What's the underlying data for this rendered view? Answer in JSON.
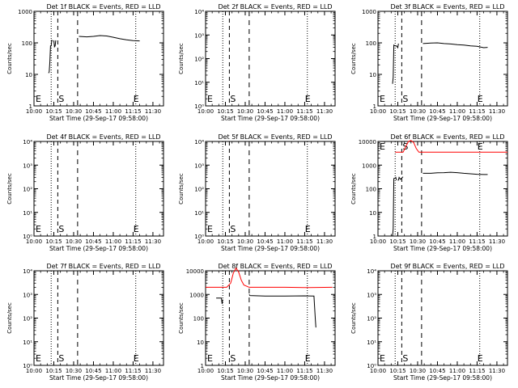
{
  "colors": {
    "events": "#000000",
    "lld": "#ff0000",
    "frame": "#000000",
    "background": "#ffffff"
  },
  "common": {
    "ylabel": "Counts/sec",
    "xlabel": "Start Time (29-Sep-17 09:58:00)",
    "x_ticks": [
      "10:00",
      "10:15",
      "10:30",
      "10:45",
      "11:00",
      "11:15",
      "11:30"
    ],
    "x_range": [
      "10:00",
      "11:38"
    ],
    "marker_times": {
      "E_start": "10:13",
      "S": "10:18",
      "dash": "10:33",
      "E_end": "11:17"
    }
  },
  "chart_data": [
    {
      "type": "line",
      "title": "Det 1f BLACK = Events, RED = LLD",
      "y_scale": "log",
      "ylim": [
        1,
        1000
      ],
      "y_ticks": [
        "1",
        "10",
        "100",
        "1000"
      ],
      "markers": [
        "E",
        "S",
        "E"
      ],
      "series": [
        {
          "name": "Events",
          "segments": [
            [
              [
                "10:11",
                11
              ],
              [
                "10:11.5",
                12
              ],
              [
                "10:12",
                25
              ],
              [
                "10:12.5",
                80
              ],
              [
                "10:13",
                80
              ],
              [
                "10:13.5",
                120
              ],
              [
                "10:14",
                115
              ]
            ],
            [
              [
                "10:15",
                120
              ],
              [
                "10:15.5",
                75
              ],
              [
                "10:16",
                80
              ],
              [
                "10:16.5",
                120
              ]
            ],
            [
              [
                "10:34",
                160
              ],
              [
                "10:40",
                155
              ],
              [
                "10:45",
                160
              ],
              [
                "10:50",
                170
              ],
              [
                "10:55",
                165
              ],
              [
                "11:00",
                150
              ],
              [
                "11:05",
                135
              ],
              [
                "11:10",
                125
              ],
              [
                "11:15",
                118
              ],
              [
                "11:20",
                115
              ]
            ]
          ]
        }
      ]
    },
    {
      "type": "line",
      "title": "Det 2f BLACK = Events, RED = LLD",
      "y_scale": "log",
      "ylim": [
        1,
        10000
      ],
      "y_ticks": [
        "10⁰",
        "10¹",
        "10²",
        "10³",
        "10⁴"
      ],
      "markers": [
        "E",
        "S",
        "E"
      ],
      "series": []
    },
    {
      "type": "line",
      "title": "Det 3f BLACK = Events, RED = LLD",
      "y_scale": "log",
      "ylim": [
        1,
        1000
      ],
      "y_ticks": [
        "1",
        "10",
        "100",
        "1000"
      ],
      "markers": [
        "E",
        "S",
        "E"
      ],
      "series": [
        {
          "name": "Events",
          "segments": [
            [
              [
                "10:11",
                5
              ],
              [
                "10:11.5",
                8
              ],
              [
                "10:12",
                85
              ],
              [
                "10:13",
                80
              ],
              [
                "10:14",
                80
              ],
              [
                "10:15",
                70
              ],
              [
                "10:15.5",
                95
              ]
            ],
            [
              [
                "10:34",
                95
              ],
              [
                "10:40",
                98
              ],
              [
                "10:45",
                100
              ],
              [
                "10:50",
                95
              ],
              [
                "10:55",
                92
              ],
              [
                "11:00",
                88
              ],
              [
                "11:05",
                85
              ],
              [
                "11:10",
                80
              ],
              [
                "11:15",
                78
              ],
              [
                "11:20",
                70
              ],
              [
                "11:23",
                72
              ]
            ]
          ]
        }
      ]
    },
    {
      "type": "line",
      "title": "Det 4f BLACK = Events, RED = LLD",
      "y_scale": "log",
      "ylim": [
        1,
        10000
      ],
      "y_ticks": [
        "10⁰",
        "10¹",
        "10²",
        "10³",
        "10⁴"
      ],
      "markers": [
        "E",
        "S",
        "E"
      ],
      "series": []
    },
    {
      "type": "line",
      "title": "Det 5f BLACK = Events, RED = LLD",
      "y_scale": "log",
      "ylim": [
        1,
        10000
      ],
      "y_ticks": [
        "10⁰",
        "10¹",
        "10²",
        "10³",
        "10⁴"
      ],
      "markers": [
        "E",
        "S",
        "E"
      ],
      "series": []
    },
    {
      "type": "line",
      "title": "Det 6f BLACK = Events, RED = LLD",
      "y_scale": "log",
      "ylim": [
        1,
        10000
      ],
      "y_ticks": [
        "1",
        "10",
        "100",
        "1000",
        "10000"
      ],
      "markers": [
        "E",
        "S",
        "E"
      ],
      "series": [
        {
          "name": "LLD",
          "segments": [
            [
              [
                "10:13",
                3500
              ],
              [
                "10:19",
                3500
              ],
              [
                "10:21",
                6000
              ],
              [
                "10:23",
                10000
              ],
              [
                "10:25",
                11000
              ],
              [
                "10:27",
                9000
              ],
              [
                "10:29",
                5000
              ],
              [
                "10:31",
                3500
              ],
              [
                "11:38",
                3500
              ]
            ]
          ]
        },
        {
          "name": "Events",
          "segments": [
            [
              [
                "10:11",
                1
              ],
              [
                "10:11.5",
                2
              ],
              [
                "10:12",
                270
              ],
              [
                "10:13",
                280
              ],
              [
                "10:13.5",
                300
              ],
              [
                "10:14",
                230
              ]
            ],
            [
              [
                "10:15",
                230
              ],
              [
                "10:15.5",
                230
              ],
              [
                "10:16",
                300
              ],
              [
                "10:17",
                250
              ],
              [
                "10:19",
                320
              ]
            ],
            [
              [
                "10:34",
                450
              ],
              [
                "10:40",
                450
              ],
              [
                "10:45",
                470
              ],
              [
                "10:50",
                480
              ],
              [
                "10:55",
                500
              ],
              [
                "11:00",
                480
              ],
              [
                "11:05",
                450
              ],
              [
                "11:10",
                430
              ],
              [
                "11:15",
                410
              ],
              [
                "11:20",
                400
              ],
              [
                "11:23",
                400
              ]
            ]
          ]
        }
      ]
    },
    {
      "type": "line",
      "title": "Det 7f BLACK = Events, RED = LLD",
      "y_scale": "log",
      "ylim": [
        1,
        10000
      ],
      "y_ticks": [
        "10⁰",
        "10¹",
        "10²",
        "10³",
        "10⁴"
      ],
      "markers": [
        "E",
        "S",
        "E"
      ],
      "series": []
    },
    {
      "type": "line",
      "title": "Det 8f BLACK = Events, RED = LLD",
      "y_scale": "log",
      "ylim": [
        1,
        10000
      ],
      "y_ticks": [
        "1",
        "10",
        "100",
        "1000",
        "10000"
      ],
      "markers": [
        "E",
        "S",
        "E"
      ],
      "series": [
        {
          "name": "LLD",
          "segments": [
            [
              [
                "10:00",
                2000
              ],
              [
                "10:10",
                2000
              ],
              [
                "10:16",
                2000
              ],
              [
                "10:19",
                3000
              ],
              [
                "10:21",
                8000
              ],
              [
                "10:23",
                13000
              ],
              [
                "10:25",
                9000
              ],
              [
                "10:27",
                4000
              ],
              [
                "10:29",
                2500
              ],
              [
                "10:33",
                2000
              ],
              [
                "10:45",
                2000
              ],
              [
                "11:00",
                2000
              ],
              [
                "11:15",
                1950
              ],
              [
                "11:36",
                2000
              ]
            ]
          ]
        },
        {
          "name": "Events",
          "segments": [
            [
              [
                "10:08",
                700
              ],
              [
                "10:10",
                700
              ],
              [
                "10:12",
                700
              ],
              [
                "10:12.5",
                400
              ],
              [
                "10:13",
                600
              ]
            ],
            [
              [
                "10:33",
                1000
              ],
              [
                "10:33.5",
                900
              ],
              [
                "10:45",
                850
              ],
              [
                "11:00",
                860
              ],
              [
                "11:15",
                870
              ],
              [
                "11:22",
                850
              ],
              [
                "11:23",
                100
              ],
              [
                "11:23.5",
                40
              ]
            ]
          ]
        }
      ]
    },
    {
      "type": "line",
      "title": "Det 9f BLACK = Events, RED = LLD",
      "y_scale": "log",
      "ylim": [
        1,
        10000
      ],
      "y_ticks": [
        "10⁰",
        "10¹",
        "10²",
        "10³",
        "10⁴"
      ],
      "markers": [
        "E",
        "S",
        "E"
      ],
      "series": []
    }
  ]
}
